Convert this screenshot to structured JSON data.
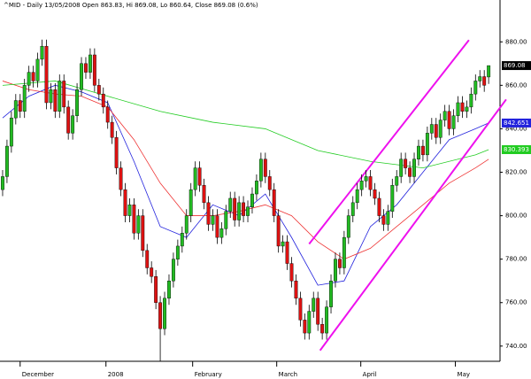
{
  "chart_data": {
    "type": "candlestick",
    "title": "^MID - Daily 13/05/2008 Open 863.83, Hi 869.08, Lo 860.64, Close 869.08 (0.6%)",
    "open": [
      812,
      818,
      832,
      845,
      853,
      848,
      860,
      866,
      862,
      872,
      878,
      852,
      858,
      848,
      862,
      850,
      838,
      846,
      858,
      870,
      866,
      874,
      860,
      856,
      850,
      843,
      836,
      822,
      812,
      800,
      805,
      792,
      800,
      784,
      776,
      772,
      760,
      748,
      762,
      770,
      780,
      786,
      792,
      800,
      812,
      822,
      814,
      806,
      796,
      800,
      790,
      794,
      802,
      808,
      798,
      806,
      800,
      804,
      810,
      816,
      826,
      818,
      812,
      800,
      786,
      788,
      778,
      770,
      762,
      752,
      746,
      756,
      762,
      750,
      746,
      758,
      770,
      780,
      776,
      790,
      800,
      806,
      812,
      816,
      818,
      812,
      808,
      800,
      796,
      802,
      814,
      818,
      826,
      822,
      818,
      826,
      832,
      828,
      838,
      842,
      836,
      844,
      848,
      840,
      846,
      852,
      848,
      850,
      856,
      862,
      864,
      863.83
    ],
    "high": [
      821,
      835,
      848,
      856,
      856,
      863,
      869,
      869,
      875,
      881,
      881,
      861,
      861,
      865,
      865,
      853,
      849,
      861,
      873,
      873,
      877,
      877,
      863,
      859,
      853,
      846,
      839,
      825,
      815,
      808,
      808,
      803,
      803,
      787,
      779,
      775,
      763,
      765,
      773,
      783,
      789,
      795,
      803,
      815,
      825,
      825,
      817,
      809,
      803,
      803,
      797,
      805,
      811,
      811,
      809,
      809,
      807,
      813,
      819,
      829,
      829,
      821,
      815,
      803,
      791,
      791,
      781,
      773,
      765,
      755,
      759,
      765,
      765,
      753,
      761,
      773,
      783,
      783,
      793,
      803,
      809,
      815,
      819,
      821,
      821,
      815,
      811,
      803,
      805,
      817,
      821,
      829,
      829,
      825,
      829,
      835,
      835,
      841,
      845,
      845,
      847,
      851,
      851,
      849,
      855,
      855,
      853,
      859,
      865,
      867,
      867,
      869.08
    ],
    "low": [
      809,
      815,
      829,
      842,
      845,
      845,
      857,
      859,
      859,
      869,
      849,
      849,
      845,
      845,
      847,
      835,
      835,
      843,
      855,
      863,
      863,
      857,
      853,
      847,
      840,
      833,
      819,
      809,
      797,
      797,
      789,
      789,
      781,
      773,
      769,
      757,
      733,
      745,
      759,
      767,
      777,
      783,
      789,
      797,
      809,
      811,
      803,
      793,
      793,
      787,
      787,
      791,
      799,
      795,
      795,
      797,
      797,
      801,
      807,
      813,
      815,
      809,
      797,
      783,
      783,
      775,
      767,
      759,
      749,
      743,
      743,
      753,
      747,
      743,
      743,
      755,
      767,
      773,
      773,
      787,
      797,
      803,
      809,
      813,
      809,
      805,
      797,
      793,
      793,
      799,
      811,
      815,
      819,
      815,
      815,
      823,
      825,
      825,
      835,
      833,
      833,
      841,
      837,
      837,
      843,
      845,
      845,
      847,
      853,
      859,
      857,
      860.64
    ],
    "close": [
      818,
      832,
      845,
      853,
      848,
      860,
      866,
      862,
      872,
      878,
      852,
      858,
      848,
      862,
      850,
      838,
      846,
      858,
      870,
      866,
      874,
      860,
      856,
      850,
      843,
      836,
      822,
      812,
      800,
      805,
      792,
      800,
      784,
      776,
      772,
      760,
      748,
      762,
      770,
      780,
      786,
      792,
      800,
      812,
      822,
      814,
      806,
      796,
      800,
      790,
      794,
      802,
      808,
      798,
      806,
      800,
      804,
      810,
      816,
      826,
      818,
      812,
      800,
      786,
      788,
      778,
      770,
      762,
      752,
      746,
      756,
      762,
      750,
      746,
      758,
      770,
      780,
      776,
      790,
      800,
      806,
      812,
      816,
      818,
      812,
      808,
      800,
      796,
      802,
      814,
      818,
      826,
      822,
      818,
      826,
      832,
      828,
      838,
      842,
      836,
      844,
      848,
      840,
      846,
      852,
      848,
      850,
      856,
      862,
      864,
      860,
      869.08
    ],
    "up_color": "#22bb22",
    "down_color": "#dd1111",
    "series": [
      {
        "color": "#2222dd",
        "x": [
          0,
          6,
          12,
          18,
          24,
          30,
          36,
          42,
          48,
          54,
          60,
          66,
          72,
          78,
          84,
          90,
          96,
          102,
          108,
          111
        ],
        "values": [
          845,
          855,
          860,
          857,
          852,
          825,
          795,
          790,
          805,
          800,
          810,
          790,
          768,
          770,
          795,
          805,
          820,
          835,
          840,
          842.651
        ]
      },
      {
        "color": "#ee3333",
        "x": [
          0,
          6,
          12,
          18,
          24,
          30,
          36,
          42,
          48,
          54,
          60,
          66,
          72,
          78,
          84,
          90,
          96,
          102,
          108,
          111
        ],
        "values": [
          862,
          858,
          856,
          855,
          850,
          835,
          815,
          800,
          800,
          802,
          805,
          800,
          788,
          780,
          785,
          795,
          805,
          815,
          822,
          826
        ]
      },
      {
        "color": "#22cc22",
        "x": [
          0,
          12,
          24,
          36,
          48,
          60,
          72,
          84,
          96,
          108,
          111
        ],
        "values": [
          860,
          862,
          855,
          848,
          843,
          840,
          830,
          825,
          822,
          828,
          830.393
        ]
      }
    ],
    "channels": [
      {
        "color": "#ee11ee",
        "x": [
          70,
          106.5
        ],
        "values": [
          787,
          880.8
        ]
      },
      {
        "color": "#ee11ee",
        "x": [
          72.5,
          115
        ],
        "values": [
          738,
          853.5
        ]
      }
    ],
    "xlim": [
      -0.6,
      113.6
    ],
    "xticks": [
      {
        "value": 4,
        "label": "December"
      },
      {
        "value": 23.6,
        "label": "2008"
      },
      {
        "value": 43.4,
        "label": "February"
      },
      {
        "value": 62.6,
        "label": "March"
      },
      {
        "value": 81.8,
        "label": "April"
      },
      {
        "value": 103.4,
        "label": "May"
      }
    ],
    "ylim": [
      733,
      896
    ],
    "yticks": [
      {
        "value": 740,
        "label": "740.00"
      },
      {
        "value": 760,
        "label": "760.00"
      },
      {
        "value": 780,
        "label": "780.00"
      },
      {
        "value": 800,
        "label": "800.00"
      },
      {
        "value": 820,
        "label": "820.00"
      },
      {
        "value": 840,
        "label": "840.00"
      },
      {
        "value": 860,
        "label": "860.00"
      },
      {
        "value": 880,
        "label": "880.00"
      }
    ]
  }
}
